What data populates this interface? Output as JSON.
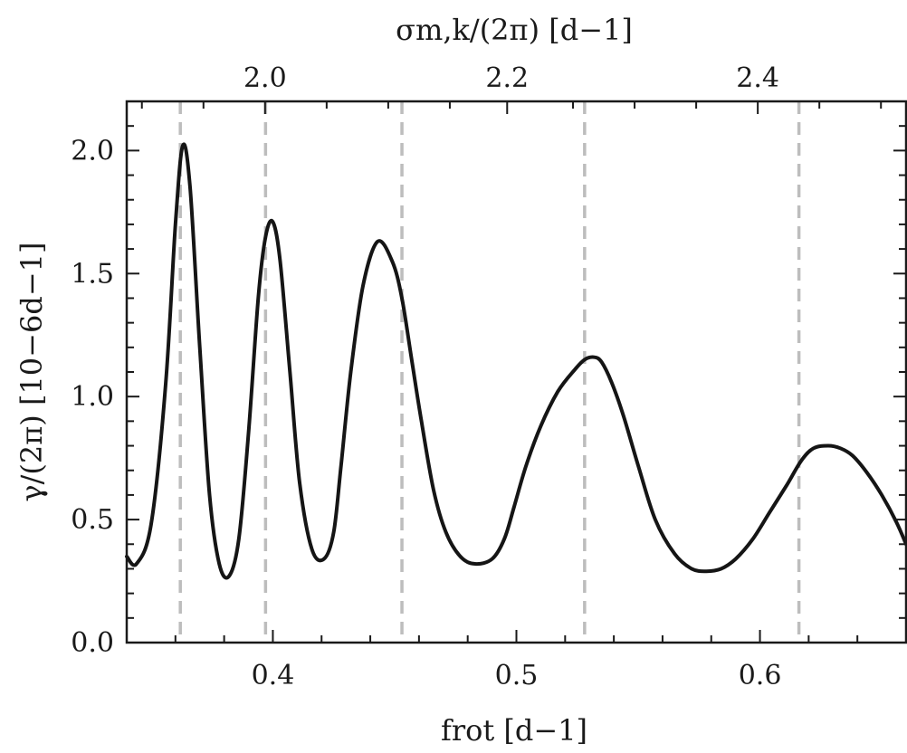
{
  "chart_data": {
    "type": "line",
    "xlim": [
      0.34,
      0.66
    ],
    "ylim": [
      0.0,
      2.2
    ],
    "x_ticks": [
      0.4,
      0.5,
      0.6
    ],
    "x_tick_labels": [
      "0.4",
      "0.5",
      "0.6"
    ],
    "y_ticks": [
      0.0,
      0.5,
      1.0,
      1.5,
      2.0
    ],
    "y_tick_labels": [
      "0.0",
      "0.5",
      "1.0",
      "1.5",
      "2.0"
    ],
    "top_axis": {
      "tick_positions_frot": [
        0.3968,
        0.4962,
        0.5991
      ],
      "tick_labels": [
        "2.0",
        "2.2",
        "2.4"
      ],
      "label": "σm,k/(2π) [d−1]"
    },
    "xlabel": "frot [d−1]",
    "ylabel": "γ/(2π) [10−6d−1]",
    "vertical_dashed_lines": [
      0.362,
      0.397,
      0.453,
      0.528,
      0.616
    ],
    "series": [
      {
        "x": [
          0.34,
          0.344,
          0.35,
          0.356,
          0.36,
          0.363,
          0.366,
          0.37,
          0.374,
          0.378,
          0.382,
          0.386,
          0.39,
          0.394,
          0.397,
          0.4,
          0.403,
          0.407,
          0.411,
          0.416,
          0.421,
          0.425,
          0.428,
          0.432,
          0.437,
          0.443,
          0.449,
          0.453,
          0.457,
          0.461,
          0.466,
          0.471,
          0.477,
          0.483,
          0.49,
          0.495,
          0.499,
          0.504,
          0.51,
          0.517,
          0.524,
          0.528,
          0.532,
          0.535,
          0.539,
          0.544,
          0.55,
          0.557,
          0.565,
          0.572,
          0.578,
          0.584,
          0.59,
          0.597,
          0.604,
          0.611,
          0.617,
          0.622,
          0.628,
          0.633,
          0.638,
          0.644,
          0.65,
          0.656,
          0.66
        ],
        "y": [
          0.35,
          0.32,
          0.48,
          1.05,
          1.7,
          2.02,
          1.85,
          1.2,
          0.6,
          0.32,
          0.27,
          0.42,
          0.85,
          1.4,
          1.65,
          1.71,
          1.55,
          1.1,
          0.65,
          0.38,
          0.34,
          0.45,
          0.72,
          1.1,
          1.45,
          1.63,
          1.55,
          1.4,
          1.15,
          0.9,
          0.62,
          0.45,
          0.35,
          0.32,
          0.34,
          0.42,
          0.55,
          0.72,
          0.88,
          1.02,
          1.11,
          1.15,
          1.16,
          1.14,
          1.06,
          0.92,
          0.72,
          0.5,
          0.36,
          0.3,
          0.29,
          0.3,
          0.34,
          0.42,
          0.53,
          0.64,
          0.74,
          0.79,
          0.8,
          0.79,
          0.76,
          0.69,
          0.6,
          0.49,
          0.4
        ]
      }
    ]
  }
}
